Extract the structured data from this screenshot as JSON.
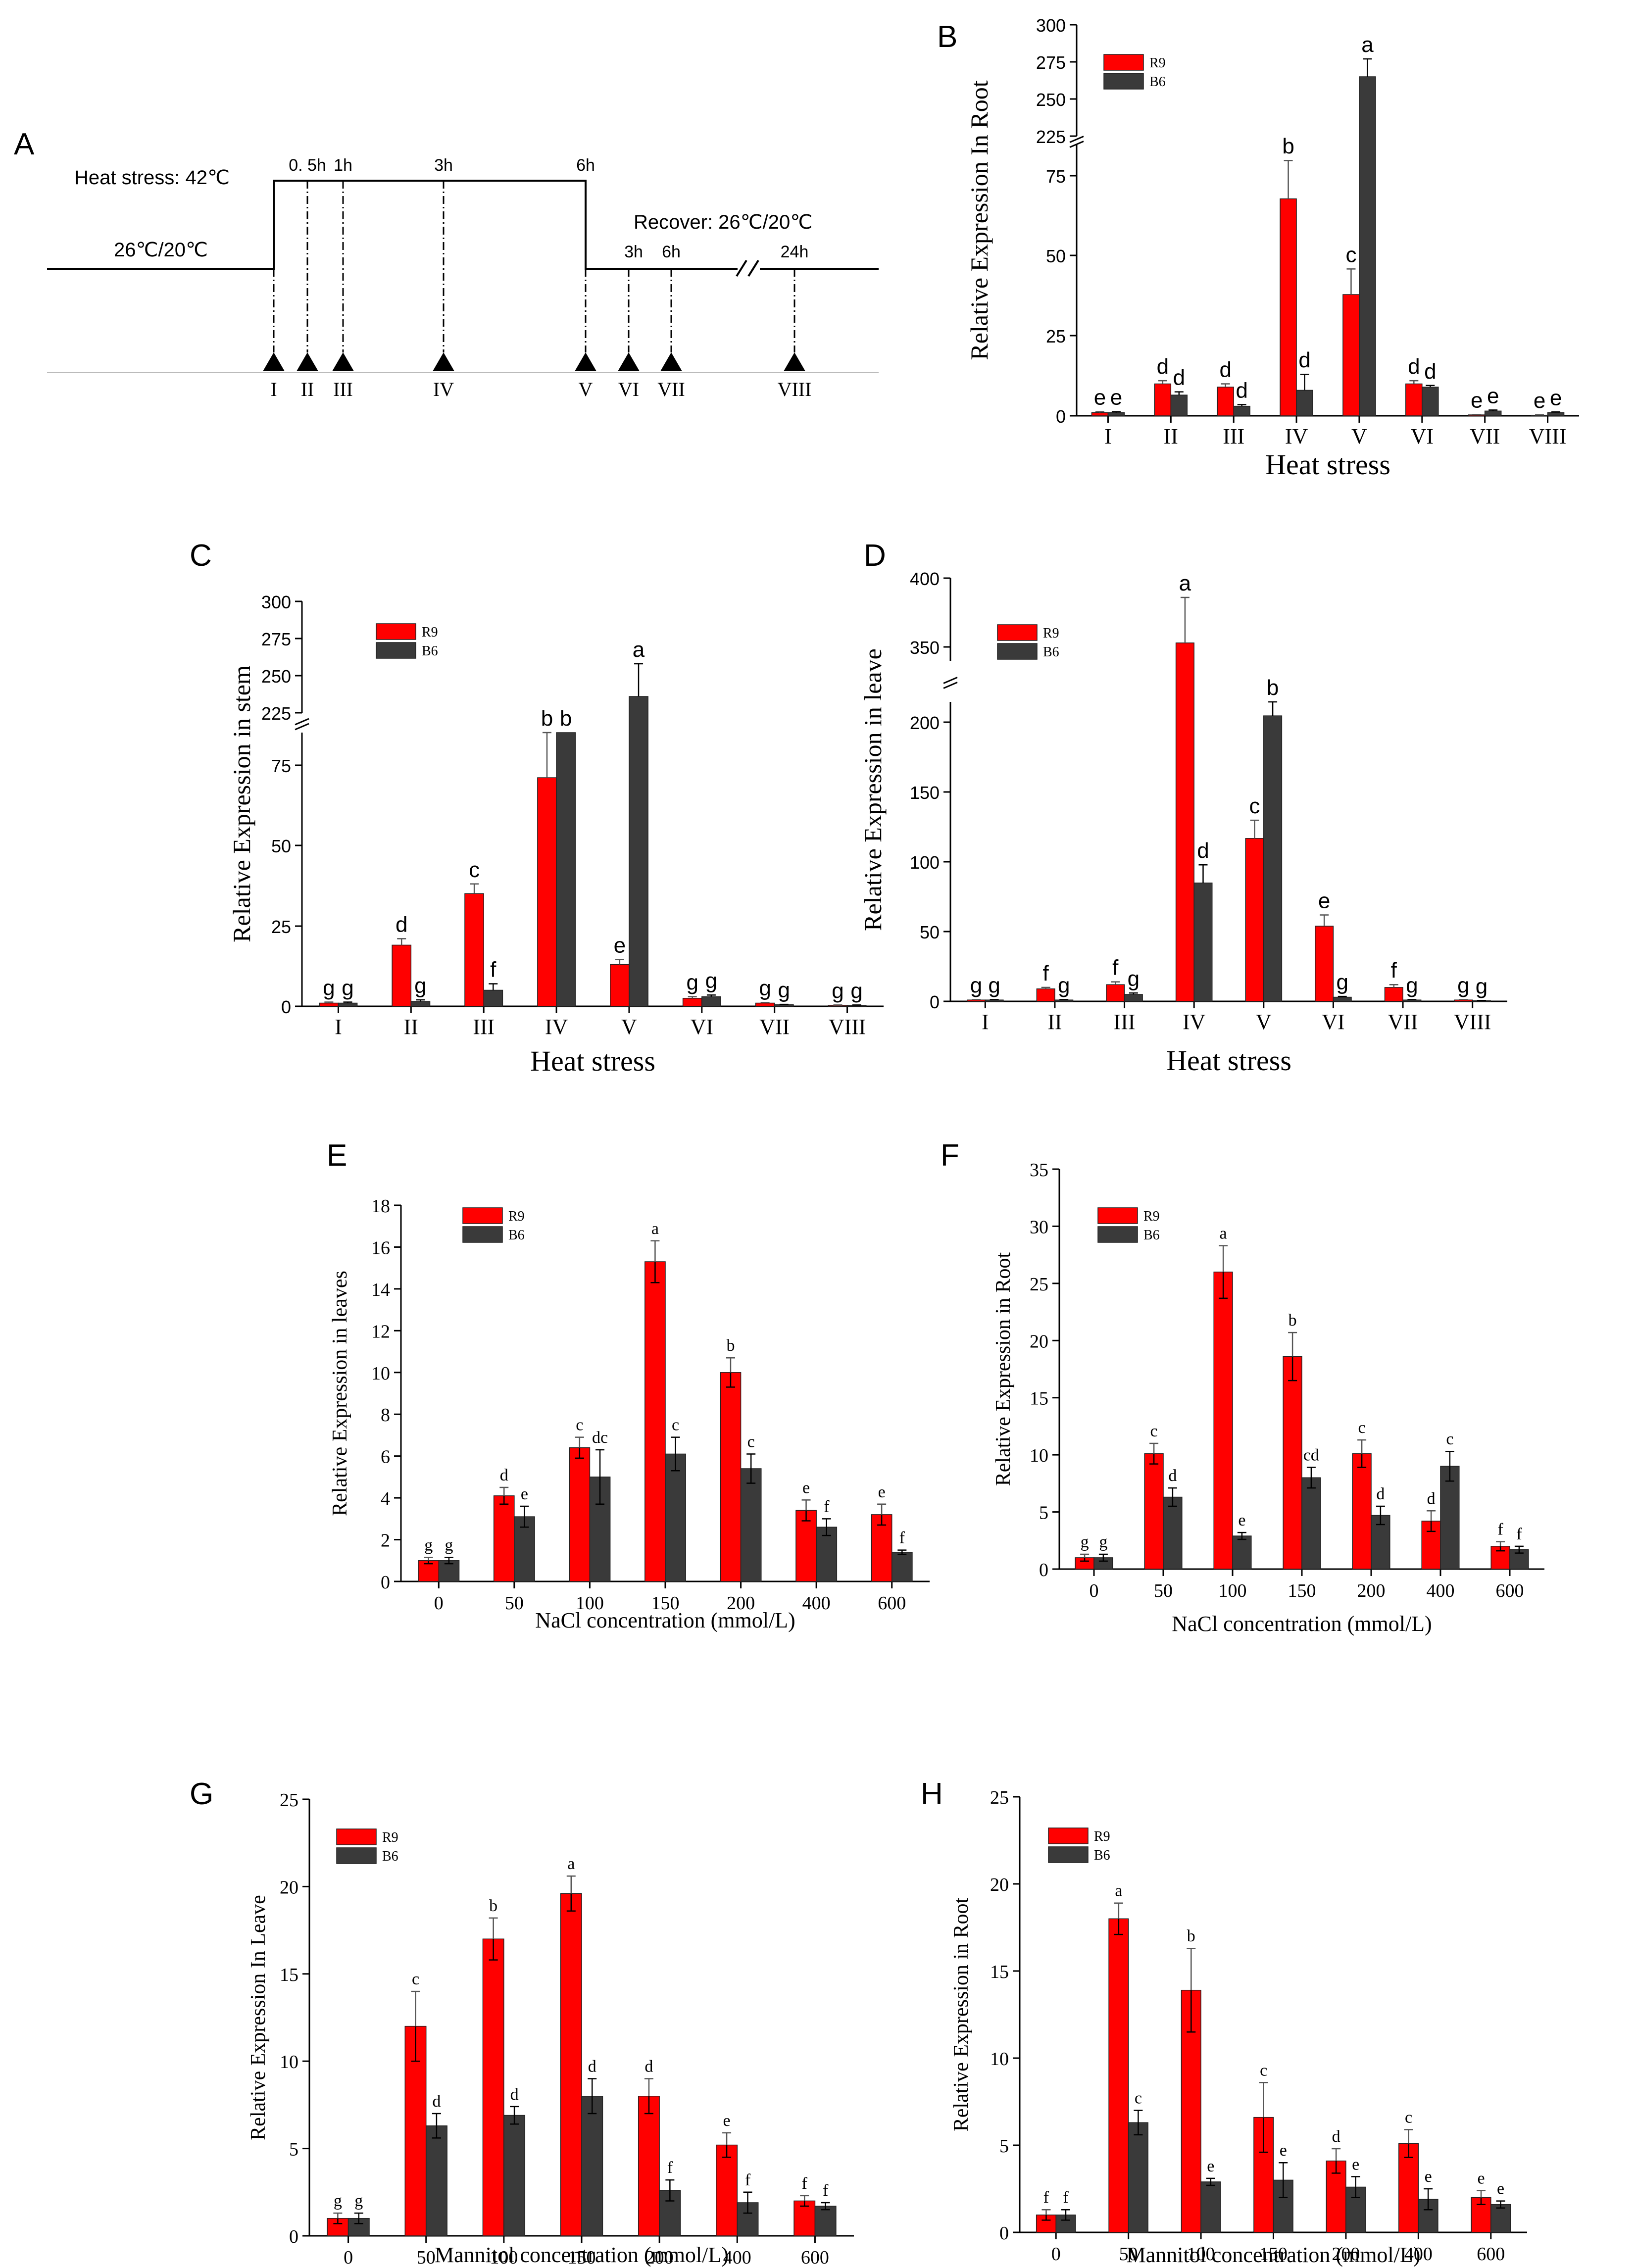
{
  "colors": {
    "R9": "#ff0000",
    "B6": "#3a3a3a"
  },
  "panel_a": {
    "letter": "A",
    "heat_label": "Heat stress: 42℃",
    "base_label": "26℃/20℃",
    "recover_label": "Recover: 26℃/20℃",
    "times_heat": [
      "0. 5h",
      "1h",
      "3h",
      "6h"
    ],
    "times_recover": [
      "3h",
      "6h",
      "24h"
    ],
    "stages": [
      "I",
      "II",
      "III",
      "IV",
      "V",
      "VI",
      "VII",
      "VIII"
    ]
  },
  "chart_data": [
    {
      "panel": "B",
      "type": "bar",
      "broken_axis": true,
      "categories": [
        "I",
        "II",
        "III",
        "IV",
        "V",
        "VI",
        "VII",
        "VIII"
      ],
      "series": [
        {
          "name": "R9",
          "values": [
            1,
            10,
            9,
            68,
            38,
            10,
            0.3,
            0.2
          ],
          "errors": [
            0.3,
            1.0,
            1.0,
            12,
            8,
            1.0,
            0.1,
            0.1
          ],
          "letters": [
            "e",
            "d",
            "d",
            "b",
            "c",
            "d",
            "e",
            "e"
          ]
        },
        {
          "name": "B6",
          "values": [
            1,
            6.5,
            3,
            8,
            265,
            9,
            1.5,
            1
          ],
          "errors": [
            0.3,
            1.0,
            0.5,
            5,
            12,
            0.5,
            0.3,
            0.2
          ],
          "letters": [
            "e",
            "d",
            "d",
            "d",
            "a",
            "d",
            "e",
            "e"
          ]
        }
      ],
      "ylabel": "Relative Expression In Root",
      "xlabel": "Heat stress",
      "yticks": [
        "0",
        "25",
        "50",
        "75",
        "225",
        "250",
        "275",
        "300"
      ],
      "legend": [
        "R9",
        "B6"
      ]
    },
    {
      "panel": "C",
      "type": "bar",
      "broken_axis": true,
      "categories": [
        "I",
        "II",
        "III",
        "IV",
        "V",
        "VI",
        "VII",
        "VIII"
      ],
      "series": [
        {
          "name": "R9",
          "values": [
            1,
            19,
            35,
            71,
            13,
            2.5,
            1,
            0.3
          ],
          "errors": [
            0.3,
            2,
            3,
            14,
            1.5,
            0.5,
            0.2,
            0.1
          ],
          "letters": [
            "g",
            "d",
            "c",
            "b",
            "e",
            "g",
            "g",
            "g"
          ]
        },
        {
          "name": "B6",
          "values": [
            1,
            1.5,
            5,
            85,
            236,
            3,
            0.5,
            0.3
          ],
          "errors": [
            0.3,
            0.5,
            2,
            0,
            22,
            0.5,
            0.1,
            0.1
          ],
          "letters": [
            "g",
            "g",
            "f",
            "b",
            "a",
            "g",
            "g",
            "g"
          ]
        }
      ],
      "ylabel": "Relative Expression in stem",
      "xlabel": "Heat stress",
      "yticks": [
        "0",
        "25",
        "50",
        "75",
        "225",
        "250",
        "275",
        "300"
      ],
      "legend": [
        "R9",
        "B6"
      ]
    },
    {
      "panel": "D",
      "type": "bar",
      "broken_axis": true,
      "categories": [
        "I",
        "II",
        "III",
        "IV",
        "V",
        "VI",
        "VII",
        "VIII"
      ],
      "series": [
        {
          "name": "R9",
          "values": [
            1,
            9,
            12,
            353,
            117,
            54,
            10,
            1
          ],
          "errors": [
            0.3,
            1,
            2,
            33,
            13,
            8,
            2,
            0.3
          ],
          "letters": [
            "g",
            "f",
            "f",
            "a",
            "c",
            "e",
            "f",
            "g"
          ]
        },
        {
          "name": "B6",
          "values": [
            1,
            1,
            5,
            85,
            205,
            3,
            1,
            0.5
          ],
          "errors": [
            0.3,
            0.3,
            1,
            13,
            23,
            0.5,
            0.3,
            0.1
          ],
          "letters": [
            "g",
            "g",
            "g",
            "d",
            "b",
            "g",
            "g",
            "g"
          ]
        }
      ],
      "ylabel": "Relative Expression in leave",
      "xlabel": "Heat stress",
      "yticks": [
        "0",
        "50",
        "100",
        "150",
        "200",
        "350",
        "400"
      ],
      "legend": [
        "R9",
        "B6"
      ]
    },
    {
      "panel": "E",
      "type": "bar",
      "categories": [
        "0",
        "50",
        "100",
        "150",
        "200",
        "400",
        "600"
      ],
      "series": [
        {
          "name": "R9",
          "values": [
            1,
            4.1,
            6.4,
            15.3,
            10,
            3.4,
            3.2
          ],
          "errors": [
            0.15,
            0.4,
            0.5,
            1.0,
            0.7,
            0.5,
            0.5
          ],
          "letters": [
            "g",
            "d",
            "c",
            "a",
            "b",
            "e",
            "e"
          ]
        },
        {
          "name": "B6",
          "values": [
            1,
            3.1,
            5,
            6.1,
            5.4,
            2.6,
            1.4
          ],
          "errors": [
            0.15,
            0.5,
            1.3,
            0.8,
            0.7,
            0.4,
            0.1
          ],
          "letters": [
            "g",
            "e",
            "dc",
            "c",
            "c",
            "f",
            "f"
          ]
        }
      ],
      "ylabel": "Relative Expression in leaves",
      "xlabel": "NaCl concentration (mmol/L)",
      "ylim": [
        0,
        18
      ],
      "yticks": [
        "0",
        "2",
        "4",
        "6",
        "8",
        "10",
        "12",
        "14",
        "16",
        "18"
      ],
      "legend": [
        "R9",
        "B6"
      ]
    },
    {
      "panel": "F",
      "type": "bar",
      "categories": [
        "0",
        "50",
        "100",
        "150",
        "200",
        "400",
        "600"
      ],
      "series": [
        {
          "name": "R9",
          "values": [
            1,
            10.1,
            26,
            18.6,
            10.1,
            4.2,
            2
          ],
          "errors": [
            0.3,
            0.9,
            2.3,
            2.1,
            1.2,
            0.9,
            0.4
          ],
          "letters": [
            "g",
            "c",
            "a",
            "b",
            "c",
            "d",
            "f"
          ]
        },
        {
          "name": "B6",
          "values": [
            1,
            6.3,
            2.9,
            8,
            4.7,
            9,
            1.7
          ],
          "errors": [
            0.3,
            0.8,
            0.3,
            0.9,
            0.8,
            1.3,
            0.3
          ],
          "letters": [
            "g",
            "d",
            "e",
            "cd",
            "d",
            "c",
            "f"
          ]
        }
      ],
      "ylabel": "Relative Expression in Root",
      "xlabel": "NaCl concentration (mmol/L)",
      "ylim": [
        0,
        35
      ],
      "yticks": [
        "0",
        "5",
        "10",
        "15",
        "20",
        "25",
        "30",
        "35"
      ],
      "legend": [
        "R9",
        "B6"
      ]
    },
    {
      "panel": "G",
      "type": "bar",
      "categories": [
        "0",
        "50",
        "100",
        "150",
        "200",
        "400",
        "600"
      ],
      "series": [
        {
          "name": "R9",
          "values": [
            1,
            12,
            17,
            19.6,
            8,
            5.2,
            2
          ],
          "errors": [
            0.3,
            2.0,
            1.2,
            1.0,
            1.0,
            0.7,
            0.3
          ],
          "letters": [
            "g",
            "c",
            "b",
            "a",
            "d",
            "e",
            "f"
          ]
        },
        {
          "name": "B6",
          "values": [
            1,
            6.3,
            6.9,
            8,
            2.6,
            1.9,
            1.7
          ],
          "errors": [
            0.3,
            0.7,
            0.5,
            1.0,
            0.6,
            0.6,
            0.2
          ],
          "letters": [
            "g",
            "d",
            "d",
            "d",
            "f",
            "f",
            "f"
          ]
        }
      ],
      "ylabel": "Relative Expression In Leave",
      "xlabel": "Mannitol concentration (mmol/L)",
      "ylim": [
        0,
        25
      ],
      "yticks": [
        "0",
        "5",
        "10",
        "15",
        "20",
        "25"
      ],
      "legend": [
        "R9",
        "B6"
      ]
    },
    {
      "panel": "H",
      "type": "bar",
      "categories": [
        "0",
        "50",
        "100",
        "150",
        "200",
        "400",
        "600"
      ],
      "series": [
        {
          "name": "R9",
          "values": [
            1,
            18,
            13.9,
            6.6,
            4.1,
            5.1,
            2
          ],
          "errors": [
            0.3,
            0.9,
            2.4,
            2.0,
            0.7,
            0.8,
            0.4
          ],
          "letters": [
            "f",
            "a",
            "b",
            "c",
            "d",
            "c",
            "e"
          ]
        },
        {
          "name": "B6",
          "values": [
            1,
            6.3,
            2.9,
            3,
            2.6,
            1.9,
            1.6
          ],
          "errors": [
            0.3,
            0.7,
            0.2,
            1.0,
            0.6,
            0.6,
            0.2
          ],
          "letters": [
            "f",
            "c",
            "e",
            "e",
            "e",
            "e",
            "e"
          ]
        }
      ],
      "ylabel": "Relative Expression in Root",
      "xlabel": "Mannitol concentration (mmol/L)",
      "ylim": [
        0,
        25
      ],
      "yticks": [
        "0",
        "5",
        "10",
        "15",
        "20",
        "25"
      ],
      "legend": [
        "R9",
        "B6"
      ]
    }
  ]
}
